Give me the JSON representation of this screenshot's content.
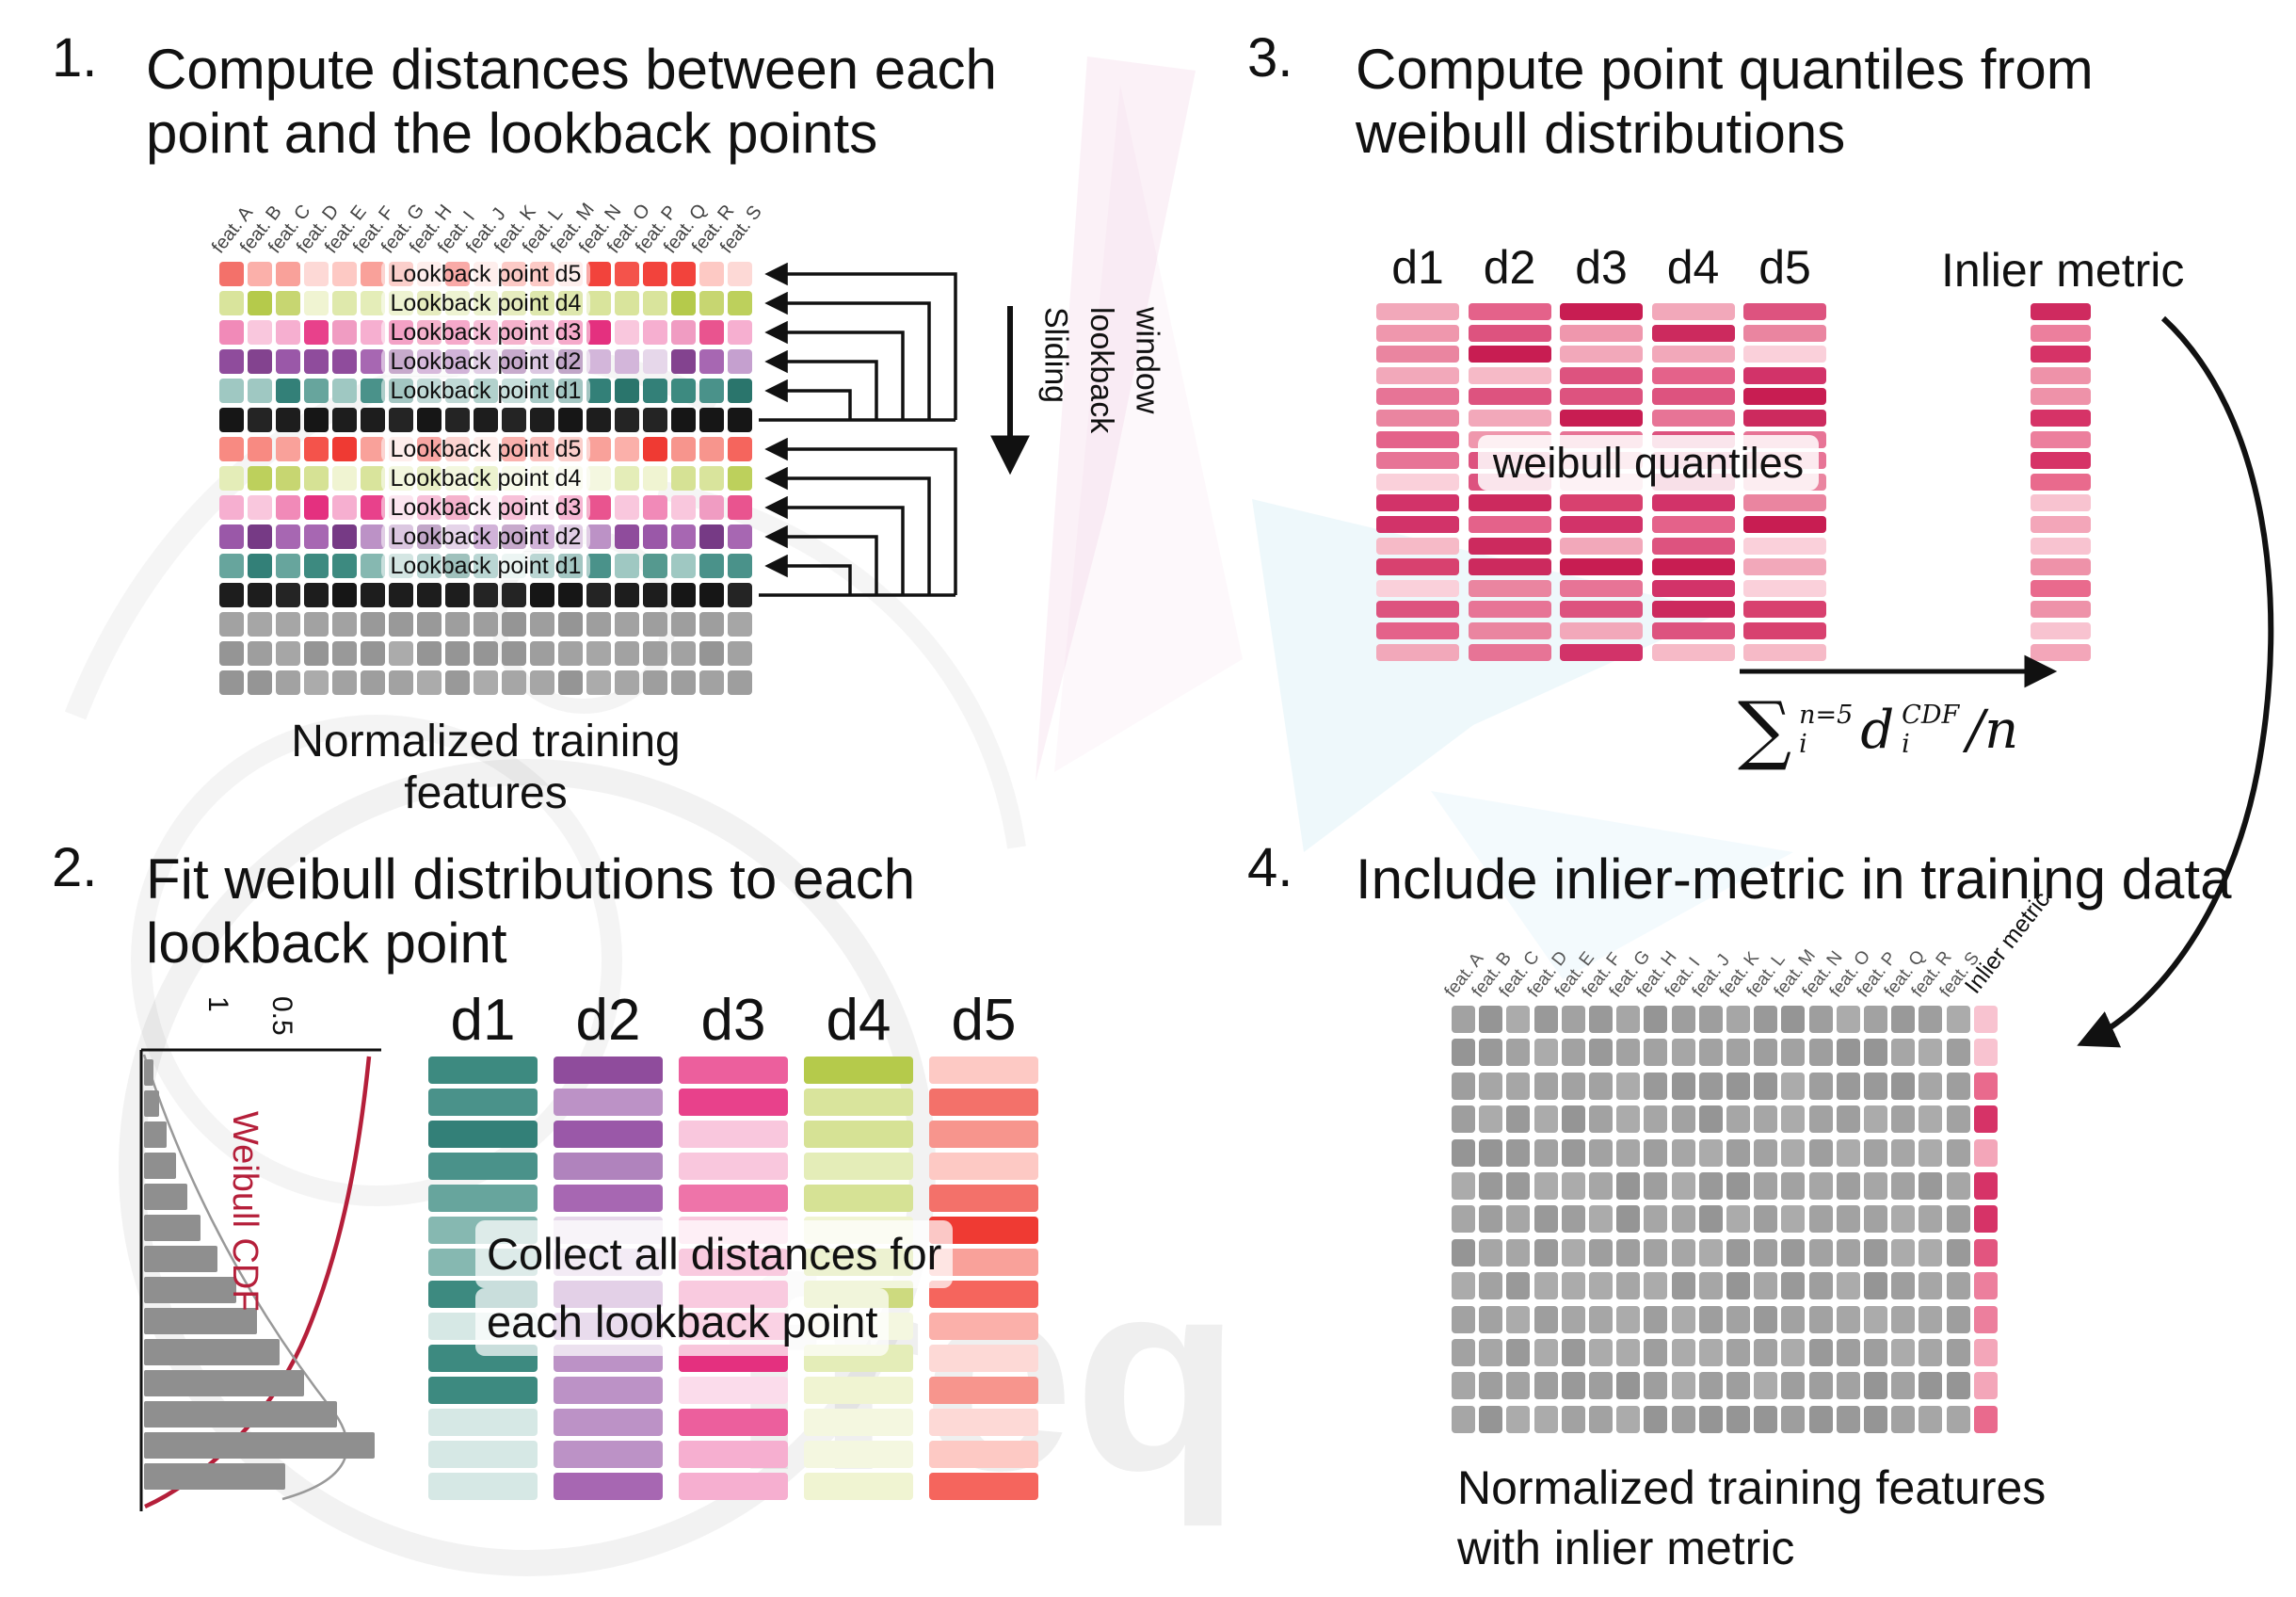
{
  "watermark": {
    "text": "freq"
  },
  "palettes": {
    "red": [
      "#f2433c",
      "#f5655d",
      "#f88a82",
      "#fbb0aa",
      "#f4534b",
      "#f9a19a",
      "#f3716a",
      "#fdc9c4",
      "#ef3a33",
      "#f7958d",
      "#fdd9d6"
    ],
    "yellowgreen": [
      "#c7d671",
      "#d6e295",
      "#e4edb8",
      "#bdd05c",
      "#dfe9ac",
      "#cdda7f",
      "#f0f4d2",
      "#b5ca4b",
      "#d9e49c",
      "#f4f7e0"
    ],
    "pink": [
      "#ec5f9d",
      "#f18ab8",
      "#e8418b",
      "#f6afd0",
      "#ee74a9",
      "#e9548f",
      "#f9c7dd",
      "#f09cc2",
      "#e4307f",
      "#fbdceb"
    ],
    "purple": [
      "#9a58a8",
      "#b083bd",
      "#83438f",
      "#c5a0cf",
      "#a767b2",
      "#8f4c9c",
      "#d3b6da",
      "#bc92c6",
      "#763a85",
      "#e6d7ea"
    ],
    "teal": [
      "#4a928a",
      "#67a59d",
      "#338078",
      "#86b8b1",
      "#55998f",
      "#3d8a80",
      "#9fc8c2",
      "#73aca4",
      "#2a756c",
      "#d6e8e5"
    ],
    "black": [
      "#1d1d1d",
      "#242424",
      "#161616"
    ],
    "gray": [
      "#a2a2a2",
      "#999999",
      "#ababab",
      "#9e9e9e",
      "#a6a6a6",
      "#959595"
    ],
    "crimson": [
      "#d23369",
      "#dd537f",
      "#e77496",
      "#ef97ad",
      "#f6bac7",
      "#c81d52",
      "#e4628a",
      "#f2a8ba",
      "#d8416f",
      "#fad0da",
      "#cc2a5e",
      "#ea85a0"
    ],
    "inlier": [
      "#e2557f",
      "#ec7f9d",
      "#d63367",
      "#f3a6b9",
      "#e96a8d",
      "#f8c3d0",
      "#cf2a5f",
      "#ee92a9"
    ]
  },
  "step1": {
    "number": "1.",
    "title": "Compute distances between each point and the lookback points",
    "features": [
      "feat. A",
      "feat. B",
      "feat. C",
      "feat. D",
      "feat. E",
      "feat. F",
      "feat. G",
      "feat. H",
      "feat. I",
      "feat. J",
      "feat. K",
      "feat. L",
      "feat. M",
      "feat. N",
      "feat. O",
      "feat. P",
      "feat. Q",
      "feat. R",
      "feat. S"
    ],
    "rows": [
      {
        "palette": "red",
        "label": "Lookback point d5"
      },
      {
        "palette": "yellowgreen",
        "label": "Lookback point d4"
      },
      {
        "palette": "pink",
        "label": "Lookback point d3"
      },
      {
        "palette": "purple",
        "label": "Lookback point d2"
      },
      {
        "palette": "teal",
        "label": "Lookback point d1"
      },
      {
        "palette": "black"
      },
      {
        "palette": "red",
        "label": "Lookback point d5"
      },
      {
        "palette": "yellowgreen",
        "label": "Lookback point d4"
      },
      {
        "palette": "pink",
        "label": "Lookback point d3"
      },
      {
        "palette": "purple",
        "label": "Lookback point d2"
      },
      {
        "palette": "teal",
        "label": "Lookback point d1"
      },
      {
        "palette": "black"
      },
      {
        "palette": "gray"
      },
      {
        "palette": "gray"
      },
      {
        "palette": "gray"
      }
    ],
    "sliding_label_lines": [
      "Sliding",
      "lookback",
      "window"
    ],
    "caption": "Normalized training features"
  },
  "step2": {
    "number": "2.",
    "title": "Fit weibull distributions to each lookback point",
    "hist": {
      "cdf_label": "Weibull CDF",
      "ticks": [
        "1",
        "0.5"
      ],
      "bar_widths": [
        10,
        16,
        24,
        34,
        46,
        60,
        78,
        98,
        120,
        144,
        170,
        205,
        245,
        150
      ]
    },
    "columns": [
      {
        "label": "d1",
        "palette": "teal"
      },
      {
        "label": "d2",
        "palette": "purple"
      },
      {
        "label": "d3",
        "palette": "pink"
      },
      {
        "label": "d4",
        "palette": "yellowgreen"
      },
      {
        "label": "d5",
        "palette": "red"
      }
    ],
    "note_lines": [
      "Collect all distances for",
      "each lookback point"
    ]
  },
  "step3": {
    "number": "3.",
    "title": "Compute point quantiles from weibull distributions",
    "columns": [
      "d1",
      "d2",
      "d3",
      "d4",
      "d5"
    ],
    "overlay": "weibull quantiles",
    "inlier_label": "Inlier metric",
    "formula": {
      "sum": "∑",
      "sum_sup": "n=5",
      "sum_sub": "i",
      "var": "d",
      "var_sup": "CDF",
      "var_sub": "i",
      "tail": "/n"
    }
  },
  "step4": {
    "number": "4.",
    "title": "Include inlier-metric in training data",
    "features": [
      "feat. A",
      "feat. B",
      "feat. C",
      "feat. D",
      "feat. E",
      "feat. F",
      "feat. G",
      "feat. H",
      "feat. I",
      "feat. J",
      "feat. K",
      "feat. L",
      "feat. M",
      "feat. N",
      "feat. O",
      "feat. P",
      "feat. Q",
      "feat. R",
      "feat. S"
    ],
    "inlier_header": "Inlier metric",
    "caption_lines": [
      "Normalized training features",
      "with inlier metric"
    ]
  }
}
